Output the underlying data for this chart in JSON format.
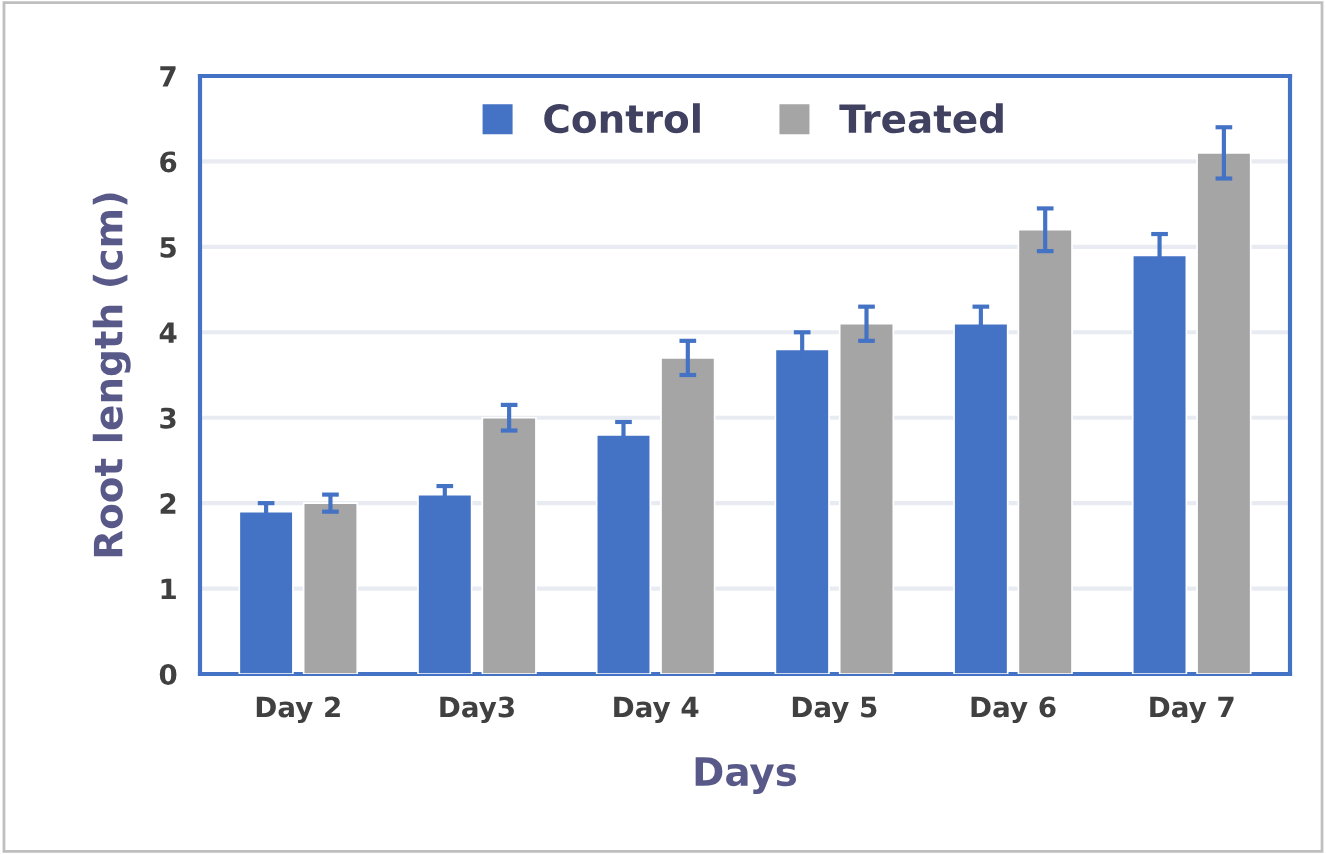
{
  "chart_data": {
    "type": "bar",
    "xlabel": "Days",
    "ylabel": "Root length (cm)",
    "categories": [
      "Day 2",
      "Day3",
      "Day 4",
      "Day 5",
      "Day 6",
      "Day 7"
    ],
    "series": [
      {
        "name": "Control",
        "color": "#4472c4",
        "values": [
          1.9,
          2.1,
          2.8,
          3.8,
          4.1,
          4.9
        ],
        "errors": [
          0.1,
          0.1,
          0.15,
          0.2,
          0.2,
          0.25
        ]
      },
      {
        "name": "Treated",
        "color": "#a5a5a5",
        "values": [
          2.0,
          3.0,
          3.7,
          4.1,
          5.2,
          6.1
        ],
        "errors": [
          0.1,
          0.15,
          0.2,
          0.2,
          0.25,
          0.3
        ]
      }
    ],
    "ylim": [
      0,
      7
    ],
    "yticks": [
      0,
      1,
      2,
      3,
      4,
      5,
      6,
      7
    ],
    "grid": "y",
    "legend": "top"
  }
}
